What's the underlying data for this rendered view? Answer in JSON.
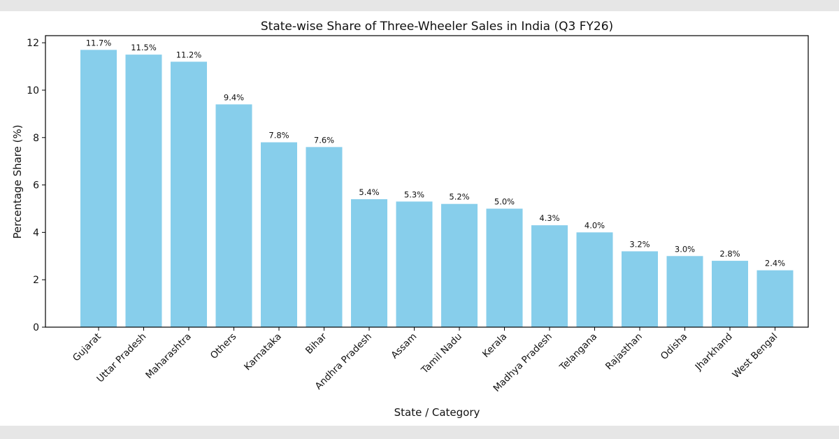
{
  "chart_data": {
    "type": "bar",
    "title": "State-wise Share of Three-Wheeler Sales in India (Q3 FY26)",
    "xlabel": "State / Category",
    "ylabel": "Percentage Share (%)",
    "categories": [
      "Gujarat",
      "Uttar Pradesh",
      "Maharashtra",
      "Others",
      "Karnataka",
      "Bihar",
      "Andhra Pradesh",
      "Assam",
      "Tamil Nadu",
      "Kerala",
      "Madhya Pradesh",
      "Telangana",
      "Rajasthan",
      "Odisha",
      "Jharkhand",
      "West Bengal"
    ],
    "values": [
      11.7,
      11.5,
      11.2,
      9.4,
      7.8,
      7.6,
      5.4,
      5.3,
      5.2,
      5.0,
      4.3,
      4.0,
      3.2,
      3.0,
      2.8,
      2.4
    ],
    "data_labels": [
      "11.7%",
      "11.5%",
      "11.2%",
      "9.4%",
      "7.8%",
      "7.6%",
      "5.4%",
      "5.3%",
      "5.2%",
      "5.0%",
      "4.3%",
      "4.0%",
      "3.2%",
      "3.0%",
      "2.8%",
      "2.4%"
    ],
    "yticks": [
      "0",
      "2",
      "4",
      "6",
      "8",
      "10",
      "12"
    ],
    "ylim": [
      0,
      12.3
    ],
    "grid": false,
    "legend": "none",
    "bar_color": "#87ceeb"
  }
}
